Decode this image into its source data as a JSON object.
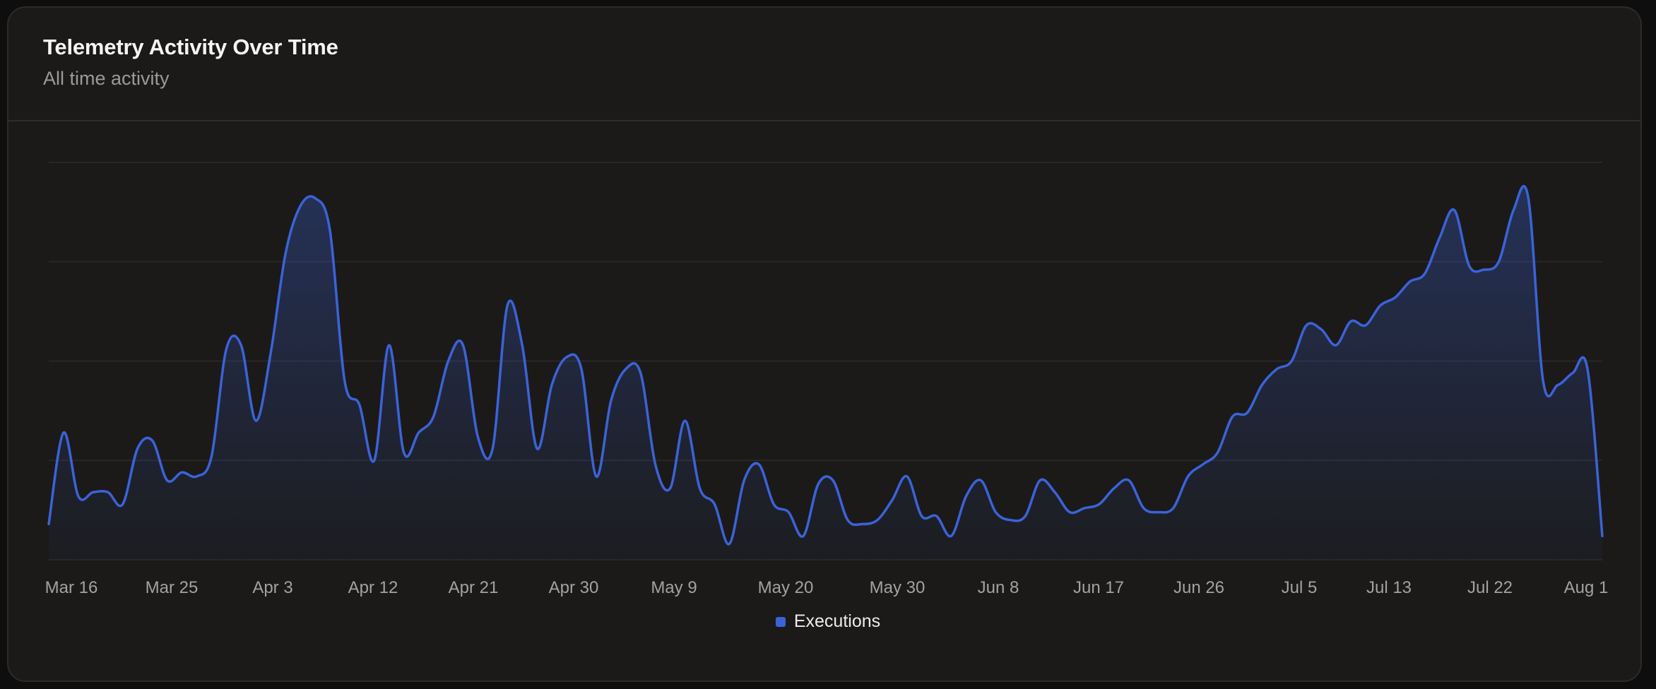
{
  "header": {
    "title": "Telemetry Activity Over Time",
    "subtitle": "All time activity"
  },
  "legend": {
    "label": "Executions",
    "color": "#3b63d9"
  },
  "chart_data": {
    "type": "area",
    "grid": "horizontal",
    "legend_position": "bottom-center",
    "color": "#3b63d9",
    "x_tick_labels": [
      "Mar 16",
      "Mar 25",
      "Apr 3",
      "Apr 12",
      "Apr 21",
      "Apr 30",
      "May 9",
      "May 20",
      "May 30",
      "Jun 8",
      "Jun 17",
      "Jun 26",
      "Jul 5",
      "Jul 13",
      "Jul 22",
      "Aug 1"
    ],
    "ylim": [
      0,
      100
    ],
    "series": [
      {
        "name": "Executions",
        "values": [
          9,
          32,
          16,
          17,
          17,
          14,
          28,
          30,
          20,
          22,
          21,
          26,
          53,
          54,
          35,
          52,
          77,
          89,
          91,
          83,
          45,
          39,
          25,
          54,
          27,
          32,
          36,
          50,
          54,
          31,
          28,
          64,
          54,
          28,
          44,
          51,
          48,
          21,
          40,
          48,
          47,
          24,
          18,
          35,
          18,
          14,
          4,
          20,
          24,
          14,
          12,
          6,
          19,
          20,
          10,
          9,
          10,
          15,
          21,
          11,
          11,
          6,
          16,
          20,
          12,
          10,
          11,
          20,
          17,
          12,
          13,
          14,
          18,
          20,
          13,
          12,
          13,
          21,
          24,
          27,
          36,
          37,
          44,
          48,
          50,
          59,
          58,
          54,
          60,
          59,
          64,
          66,
          70,
          72,
          81,
          88,
          74,
          73,
          75,
          88,
          91,
          45,
          44,
          47,
          48,
          6
        ]
      }
    ]
  }
}
